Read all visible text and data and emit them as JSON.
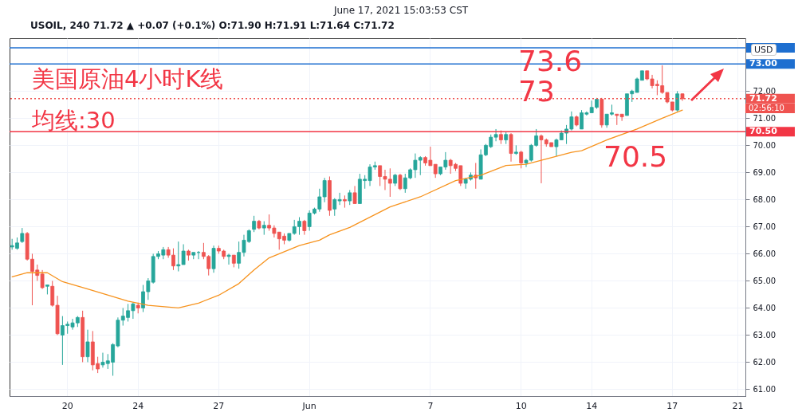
{
  "chart_data": {
    "type": "candlestick",
    "title": "June 17, 2021 15:03:53 CST",
    "subtitle": "USOIL, 240 71.72 ▲ +0.07 (+0.1%) O:71.90 H:71.91 L:71.64 C:71.72",
    "categories": [
      null,
      null,
      null,
      null,
      null,
      null,
      null,
      null,
      null,
      null,
      null,
      "20",
      null,
      null,
      null,
      null,
      null,
      null,
      null,
      null,
      null,
      null,
      null,
      null,
      null,
      "24",
      null,
      null,
      null,
      null,
      null,
      null,
      null,
      null,
      null,
      null,
      null,
      null,
      null,
      null,
      null,
      "27",
      null,
      null,
      null,
      null,
      null,
      null,
      null,
      null,
      null,
      null,
      null,
      null,
      null,
      null,
      null,
      null,
      null,
      "Jun",
      null,
      null,
      null,
      null,
      null,
      null,
      null,
      null,
      null,
      null,
      null,
      null,
      null,
      null,
      null,
      null,
      null,
      null,
      null,
      null,
      null,
      null,
      null,
      "7",
      null,
      null,
      null,
      null,
      null,
      null,
      null,
      null,
      null,
      null,
      null,
      null,
      null,
      null,
      null,
      null,
      null,
      "10",
      null,
      null,
      null,
      null,
      null,
      null,
      null,
      null,
      null,
      null,
      null,
      null,
      null,
      "14",
      null,
      null,
      null,
      null,
      null,
      null,
      null,
      null,
      null,
      null,
      null,
      null,
      null,
      null,
      null,
      "17",
      null,
      null,
      null,
      null,
      null,
      null,
      null,
      null,
      null,
      null,
      null,
      null,
      "21",
      null
    ],
    "ohlc": [
      [
        66.25,
        66.55,
        66.15,
        66.3
      ],
      [
        66.2,
        66.6,
        66.15,
        66.4
      ],
      [
        66.45,
        66.95,
        66.4,
        66.75
      ],
      [
        66.75,
        66.8,
        65.75,
        65.8
      ],
      [
        65.8,
        66.0,
        64.1,
        65.35
      ],
      [
        65.4,
        65.6,
        65.0,
        65.2
      ],
      [
        65.25,
        65.4,
        64.7,
        64.75
      ],
      [
        64.8,
        64.85,
        64.5,
        64.85
      ],
      [
        64.8,
        65.0,
        64.05,
        64.1
      ],
      [
        64.1,
        64.45,
        63.0,
        63.05
      ],
      [
        63.0,
        63.7,
        61.9,
        63.35
      ],
      [
        63.35,
        63.5,
        63.05,
        63.4
      ],
      [
        63.3,
        63.6,
        63.2,
        63.45
      ],
      [
        63.45,
        63.7,
        63.3,
        63.65
      ],
      [
        63.65,
        63.9,
        62.0,
        62.2
      ],
      [
        62.2,
        63.2,
        62.0,
        62.75
      ],
      [
        62.75,
        63.15,
        61.7,
        61.9
      ],
      [
        61.95,
        62.2,
        61.6,
        61.75
      ],
      [
        61.9,
        62.35,
        61.8,
        62.0
      ],
      [
        61.95,
        62.3,
        61.75,
        62.05
      ],
      [
        62.0,
        62.7,
        61.5,
        62.65
      ],
      [
        62.6,
        63.65,
        62.55,
        63.55
      ],
      [
        63.55,
        64.0,
        63.35,
        63.7
      ],
      [
        63.65,
        64.15,
        63.5,
        63.9
      ],
      [
        63.9,
        64.2,
        63.6,
        64.15
      ],
      [
        64.1,
        64.2,
        63.8,
        64.0
      ],
      [
        64.0,
        64.85,
        63.85,
        64.6
      ],
      [
        64.6,
        65.1,
        64.3,
        65.0
      ],
      [
        64.95,
        66.0,
        64.9,
        65.9
      ],
      [
        65.9,
        66.1,
        65.8,
        66.0
      ],
      [
        65.95,
        66.25,
        65.8,
        66.15
      ],
      [
        66.15,
        66.25,
        65.85,
        65.95
      ],
      [
        65.95,
        66.2,
        65.4,
        65.55
      ],
      [
        65.55,
        66.45,
        65.35,
        65.6
      ],
      [
        65.6,
        66.35,
        65.6,
        66.1
      ],
      [
        66.1,
        66.15,
        65.75,
        65.95
      ],
      [
        65.95,
        66.05,
        65.8,
        66.05
      ],
      [
        66.05,
        66.1,
        65.8,
        66.05
      ],
      [
        66.05,
        66.4,
        65.8,
        65.9
      ],
      [
        65.9,
        65.95,
        65.2,
        65.45
      ],
      [
        65.45,
        66.3,
        65.3,
        66.2
      ],
      [
        66.2,
        66.3,
        66.0,
        66.1
      ],
      [
        66.1,
        66.15,
        65.8,
        65.9
      ],
      [
        65.9,
        66.0,
        65.6,
        65.95
      ],
      [
        65.95,
        65.95,
        65.5,
        65.65
      ],
      [
        65.65,
        66.45,
        65.45,
        66.05
      ],
      [
        66.05,
        66.7,
        65.9,
        66.5
      ],
      [
        66.45,
        66.9,
        66.4,
        66.85
      ],
      [
        66.9,
        67.4,
        66.8,
        67.2
      ],
      [
        67.2,
        67.25,
        66.9,
        66.95
      ],
      [
        66.95,
        67.2,
        66.7,
        67.05
      ],
      [
        67.05,
        67.45,
        66.85,
        66.95
      ],
      [
        66.95,
        67.05,
        66.6,
        66.75
      ],
      [
        66.8,
        66.8,
        66.15,
        66.55
      ],
      [
        66.65,
        66.75,
        66.35,
        66.5
      ],
      [
        66.5,
        66.75,
        66.45,
        66.75
      ],
      [
        66.75,
        67.25,
        66.7,
        67.0
      ],
      [
        67.0,
        67.35,
        66.7,
        67.2
      ],
      [
        67.2,
        67.25,
        66.7,
        66.85
      ],
      [
        67.0,
        67.6,
        66.85,
        67.5
      ],
      [
        67.5,
        67.7,
        67.45,
        67.65
      ],
      [
        67.65,
        68.4,
        67.55,
        68.1
      ],
      [
        68.1,
        68.8,
        67.9,
        68.7
      ],
      [
        68.7,
        68.85,
        67.4,
        67.6
      ],
      [
        67.65,
        68.05,
        67.4,
        68.0
      ],
      [
        67.95,
        68.25,
        67.8,
        68.0
      ],
      [
        68.0,
        68.15,
        67.7,
        67.95
      ],
      [
        67.95,
        68.35,
        67.8,
        68.25
      ],
      [
        68.25,
        68.5,
        67.85,
        67.85
      ],
      [
        67.85,
        68.95,
        67.85,
        68.75
      ],
      [
        68.7,
        68.9,
        68.4,
        68.75
      ],
      [
        68.7,
        69.3,
        68.5,
        69.2
      ],
      [
        69.2,
        69.4,
        69.1,
        69.25
      ],
      [
        69.25,
        69.25,
        68.5,
        68.85
      ],
      [
        68.85,
        69.1,
        68.35,
        68.75
      ],
      [
        68.75,
        69.15,
        68.1,
        68.6
      ],
      [
        68.6,
        68.95,
        68.5,
        68.9
      ],
      [
        68.9,
        68.95,
        68.35,
        68.4
      ],
      [
        68.4,
        68.95,
        68.25,
        68.8
      ],
      [
        68.8,
        69.15,
        68.75,
        69.1
      ],
      [
        69.1,
        69.7,
        68.8,
        69.45
      ],
      [
        69.45,
        69.6,
        68.9,
        69.55
      ],
      [
        69.55,
        69.6,
        69.25,
        69.35
      ],
      [
        69.45,
        69.95,
        69.25,
        69.25
      ],
      [
        69.3,
        69.3,
        68.8,
        68.95
      ],
      [
        68.95,
        69.2,
        68.9,
        69.2
      ],
      [
        69.2,
        69.75,
        69.1,
        69.45
      ],
      [
        69.45,
        69.5,
        68.95,
        69.25
      ],
      [
        69.3,
        69.35,
        69.05,
        69.15
      ],
      [
        69.25,
        69.25,
        68.5,
        68.6
      ],
      [
        68.6,
        68.8,
        68.4,
        68.75
      ],
      [
        68.75,
        69.0,
        68.7,
        68.9
      ],
      [
        68.9,
        69.35,
        68.4,
        68.8
      ],
      [
        68.75,
        69.85,
        68.75,
        69.65
      ],
      [
        69.65,
        70.05,
        69.6,
        70.0
      ],
      [
        69.95,
        70.4,
        69.9,
        70.3
      ],
      [
        70.3,
        70.6,
        70.15,
        70.4
      ],
      [
        70.4,
        70.55,
        70.05,
        70.2
      ],
      [
        70.2,
        70.5,
        70.05,
        70.4
      ],
      [
        70.4,
        70.45,
        69.4,
        69.7
      ],
      [
        69.7,
        70.0,
        69.65,
        69.75
      ],
      [
        69.75,
        69.8,
        69.15,
        69.35
      ],
      [
        69.35,
        69.5,
        69.2,
        69.45
      ],
      [
        69.45,
        70.05,
        69.4,
        70.0
      ],
      [
        70.0,
        70.6,
        69.95,
        70.35
      ],
      [
        70.35,
        70.4,
        68.6,
        70.2
      ],
      [
        70.2,
        70.25,
        69.95,
        70.05
      ],
      [
        70.1,
        70.1,
        69.95,
        69.95
      ],
      [
        69.95,
        70.25,
        69.6,
        70.2
      ],
      [
        70.2,
        70.55,
        70.2,
        70.45
      ],
      [
        70.45,
        70.75,
        70.05,
        70.6
      ],
      [
        70.6,
        71.25,
        70.55,
        71.05
      ],
      [
        71.05,
        71.1,
        70.7,
        70.75
      ],
      [
        70.6,
        71.3,
        70.6,
        71.2
      ],
      [
        71.15,
        71.25,
        71.1,
        71.2
      ],
      [
        71.2,
        71.65,
        71.2,
        71.4
      ],
      [
        71.4,
        71.75,
        71.35,
        71.7
      ],
      [
        71.7,
        71.75,
        70.65,
        70.75
      ],
      [
        70.75,
        71.15,
        70.65,
        71.15
      ],
      [
        71.15,
        71.5,
        71.1,
        71.2
      ],
      [
        71.15,
        71.15,
        70.75,
        71.1
      ],
      [
        71.15,
        71.15,
        70.9,
        71.05
      ],
      [
        71.1,
        71.9,
        71.1,
        71.9
      ],
      [
        71.9,
        72.05,
        71.6,
        72.0
      ],
      [
        71.95,
        72.5,
        71.95,
        72.45
      ],
      [
        72.4,
        72.75,
        72.4,
        72.75
      ],
      [
        72.75,
        72.75,
        72.4,
        72.45
      ],
      [
        72.45,
        72.6,
        72.1,
        72.2
      ],
      [
        72.25,
        72.4,
        71.85,
        72.2
      ],
      [
        72.2,
        72.95,
        71.9,
        71.95
      ],
      [
        71.95,
        71.95,
        71.55,
        71.6
      ],
      [
        71.6,
        71.6,
        71.25,
        71.3
      ],
      [
        71.3,
        72.0,
        71.25,
        71.9
      ],
      [
        71.9,
        71.91,
        71.64,
        71.72
      ],
      null,
      null,
      null,
      null,
      null,
      null,
      null,
      null,
      null,
      null,
      null,
      null
    ],
    "series": [
      {
        "type": "line",
        "color": "#f7931e",
        "values": [
          65.15,
          null,
          null,
          65.3,
          null,
          null,
          null,
          65.3,
          null,
          null,
          64.97,
          null,
          null,
          null,
          null,
          64.7,
          null,
          null,
          null,
          null,
          null,
          null,
          null,
          64.25,
          null,
          null,
          null,
          64.1,
          null,
          null,
          null,
          null,
          null,
          64.0,
          null,
          null,
          null,
          64.18,
          null,
          null,
          null,
          64.47,
          null,
          null,
          null,
          64.9,
          null,
          null,
          65.4,
          null,
          null,
          65.85,
          null,
          null,
          null,
          null,
          null,
          66.3,
          null,
          null,
          null,
          66.5,
          null,
          66.7,
          null,
          null,
          null,
          66.97,
          null,
          null,
          null,
          null,
          null,
          null,
          null,
          67.73,
          null,
          null,
          null,
          null,
          null,
          68.1,
          null,
          null,
          null,
          null,
          null,
          null,
          68.7,
          null,
          null,
          null,
          null,
          68.9,
          null,
          null,
          null,
          null,
          69.26,
          null,
          null,
          null,
          69.3,
          null,
          null,
          null,
          null,
          null,
          null,
          null,
          null,
          69.74,
          null,
          69.8,
          null,
          null,
          null,
          null,
          70.2,
          null,
          null,
          null,
          null,
          null,
          70.6,
          null,
          null,
          null,
          null,
          71.0,
          null,
          null,
          null,
          71.3,
          null,
          null,
          null,
          null,
          null,
          null,
          null,
          null,
          null,
          null,
          null,
          null
        ]
      }
    ],
    "ylim": [
      60.75,
      73.95
    ],
    "yticks": [
      {
        "value": 61,
        "label": "61.00"
      },
      {
        "value": 62,
        "label": "62.00"
      },
      {
        "value": 63,
        "label": "63.00"
      },
      {
        "value": 64,
        "label": "64.00"
      },
      {
        "value": 65,
        "label": "65.00"
      },
      {
        "value": 66,
        "label": "66.00"
      },
      {
        "value": 67,
        "label": "67.00"
      },
      {
        "value": 68,
        "label": "68.00"
      },
      {
        "value": 69,
        "label": "69.00"
      },
      {
        "value": 70,
        "label": "70.00"
      },
      {
        "value": 71,
        "label": "71.00"
      },
      {
        "value": 72,
        "label": "72.00"
      }
    ],
    "ref_lines": [
      {
        "axis": "y",
        "value": 73.6,
        "color": "#1e6fd0"
      },
      {
        "axis": "y",
        "value": 73,
        "label": "73.00",
        "color": "#1e6fd0"
      },
      {
        "axis": "y",
        "value": 70.5,
        "label": "70.50",
        "color": "#f23645"
      },
      {
        "axis": "y",
        "value": 71.72,
        "label": "71.72",
        "color": "#ef5350",
        "line_style": "dotted"
      }
    ],
    "annotations": [
      "美国原油4小时K线",
      "均线:30",
      "73.6",
      "73",
      "70.5",
      "USD",
      "02:56:10"
    ],
    "grid": true
  }
}
